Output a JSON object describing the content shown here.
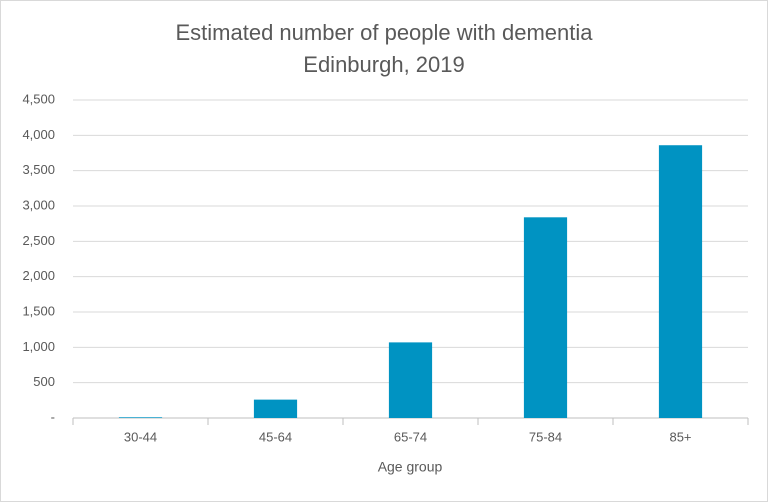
{
  "chart_data": {
    "type": "bar",
    "title": "Estimated number of people with dementia",
    "subtitle": "Edinburgh,  2019",
    "x_label": "Age group",
    "categories": [
      "30-44",
      "45-64",
      "65-74",
      "75-84",
      "85+"
    ],
    "values": [
      10,
      260,
      1070,
      2840,
      3860
    ],
    "color": "#0093c2",
    "ylim": [
      0,
      4500
    ],
    "yticks": [
      {
        "value": 0,
        "label": "-"
      },
      500,
      {
        "value": 1000,
        "label": "1,000"
      },
      {
        "value": 1500,
        "label": "1,500"
      },
      {
        "value": 2000,
        "label": "2,000"
      },
      {
        "value": 2500,
        "label": "2,500"
      },
      {
        "value": 3000,
        "label": "3,000"
      },
      {
        "value": 3500,
        "label": "3,500"
      },
      {
        "value": 4000,
        "label": "4,000"
      },
      {
        "value": 4500,
        "label": "4,500"
      }
    ],
    "grid": true
  }
}
